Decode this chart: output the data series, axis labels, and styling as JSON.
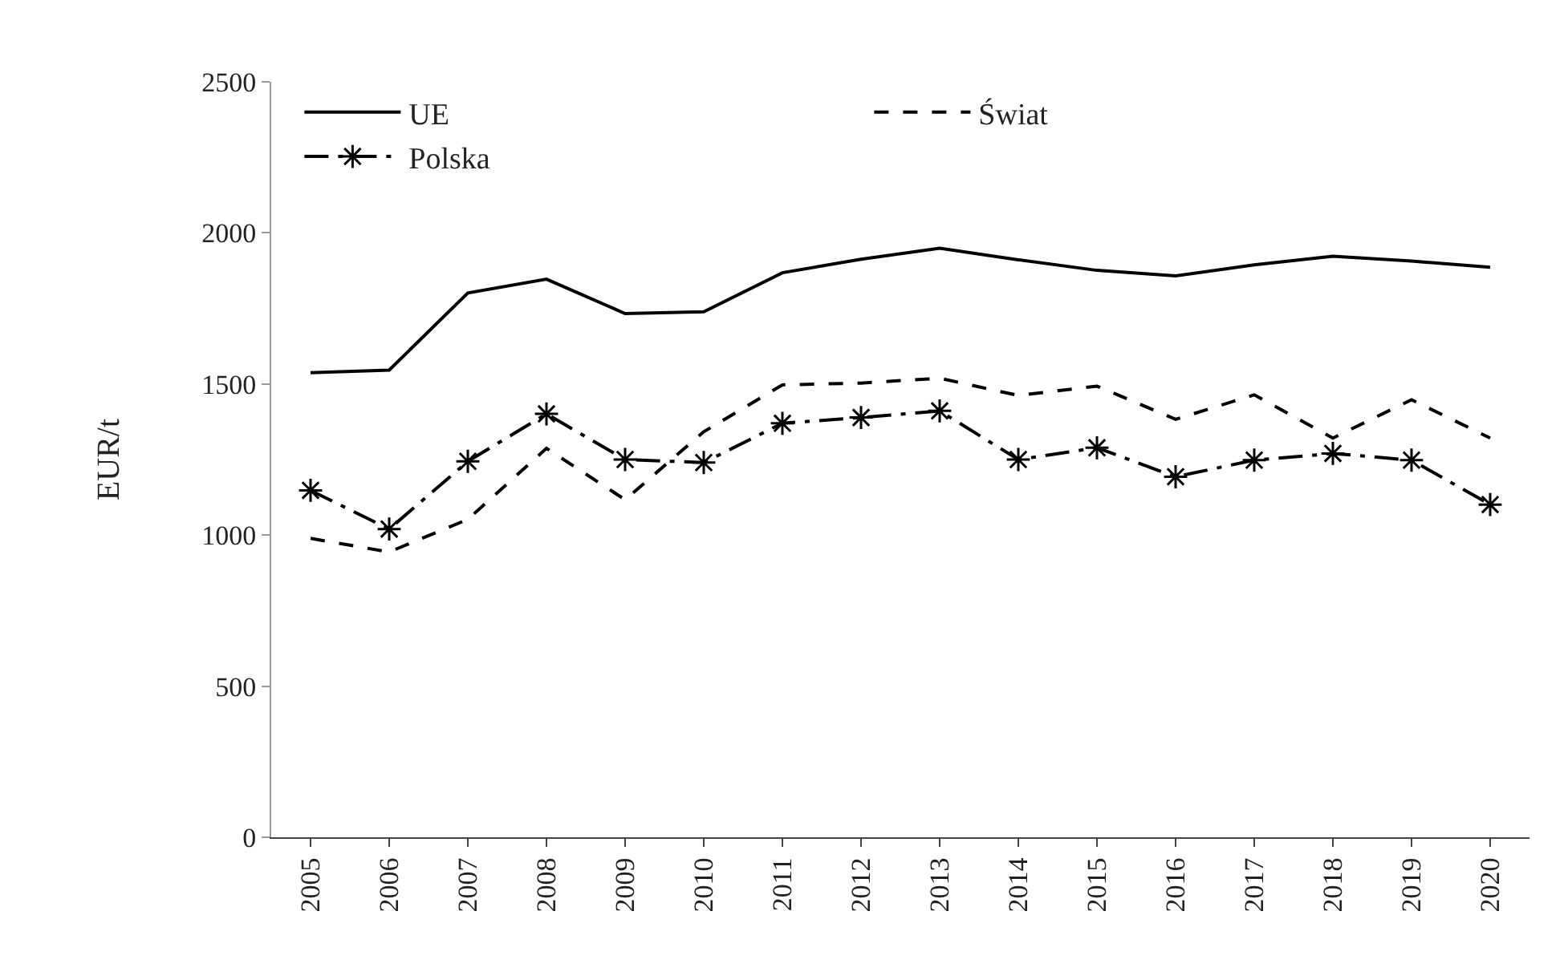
{
  "chart_data": {
    "type": "line",
    "ylabel": "EUR/t",
    "categories": [
      "2005",
      "2006",
      "2007",
      "2008",
      "2009",
      "2010",
      "2011",
      "2012",
      "2013",
      "2014",
      "2015",
      "2016",
      "2017",
      "2018",
      "2019",
      "2020"
    ],
    "series": [
      {
        "name": "UE",
        "color": "#000000",
        "line_style": "solid",
        "marker": "none",
        "values": [
          1537,
          1546,
          1801,
          1847,
          1733,
          1739,
          1868,
          1913,
          1949,
          1911,
          1876,
          1858,
          1894,
          1923,
          1907,
          1886
        ]
      },
      {
        "name": "Świat",
        "color": "#000000",
        "line_style": "dashed",
        "marker": "none",
        "values": [
          989,
          944,
          1052,
          1287,
          1117,
          1342,
          1497,
          1503,
          1519,
          1462,
          1493,
          1383,
          1464,
          1321,
          1448,
          1321
        ]
      },
      {
        "name": "Polska",
        "color": "#000000",
        "line_style": "dashdot",
        "marker": "cross",
        "values": [
          1148,
          1020,
          1244,
          1401,
          1250,
          1240,
          1370,
          1389,
          1411,
          1250,
          1289,
          1193,
          1248,
          1270,
          1248,
          1101
        ]
      }
    ],
    "ylim": [
      0,
      2500
    ],
    "yticks": [
      0,
      500,
      1000,
      1500,
      2000,
      2500
    ],
    "legend": "top left"
  }
}
